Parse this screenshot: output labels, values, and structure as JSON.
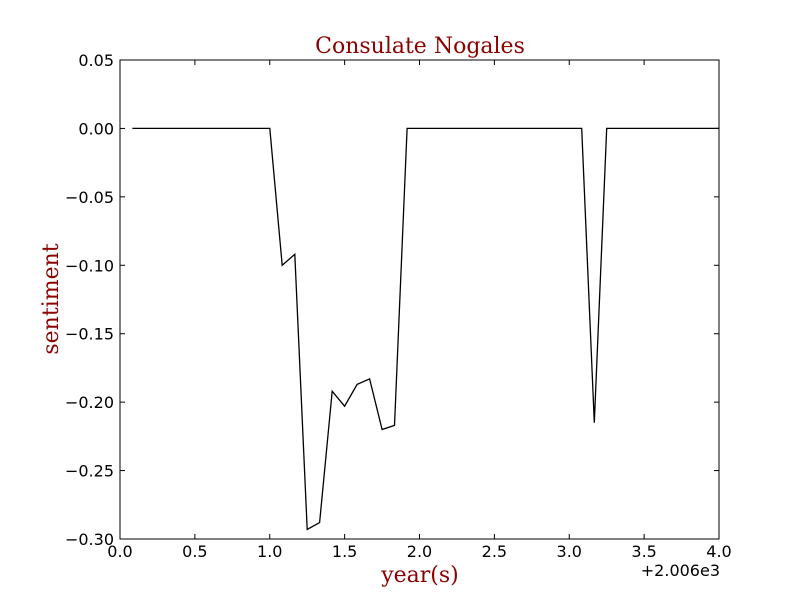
{
  "chart_data": {
    "type": "line",
    "title": "Consulate Nogales",
    "xlabel": "year(s)",
    "ylabel": "sentiment",
    "x_offset_label": "+2.006e3",
    "xlim": [
      0.0,
      4.0
    ],
    "ylim": [
      -0.3,
      0.05
    ],
    "xticks": [
      0.0,
      0.5,
      1.0,
      1.5,
      2.0,
      2.5,
      3.0,
      3.5,
      4.0
    ],
    "xtick_labels": [
      "0.0",
      "0.5",
      "1.0",
      "1.5",
      "2.0",
      "2.5",
      "3.0",
      "3.5",
      "4.0"
    ],
    "yticks": [
      0.05,
      0.0,
      -0.05,
      -0.1,
      -0.15,
      -0.2,
      -0.25,
      -0.3
    ],
    "ytick_labels": [
      "0.05",
      "0.00",
      "−0.05",
      "−0.10",
      "−0.15",
      "−0.20",
      "−0.25",
      "−0.30"
    ],
    "grid": false,
    "line_color": "#000000",
    "series": [
      {
        "x": [
          0.083,
          0.167,
          0.25,
          0.333,
          0.417,
          0.5,
          0.583,
          0.667,
          0.75,
          0.833,
          0.917,
          1.0,
          1.083,
          1.167,
          1.25,
          1.333,
          1.417,
          1.5,
          1.583,
          1.667,
          1.75,
          1.833,
          1.917,
          2.0,
          2.5,
          3.0,
          3.083,
          3.167,
          3.25,
          3.333,
          4.0
        ],
        "values": [
          0.0,
          0.0,
          0.0,
          0.0,
          0.0,
          0.0,
          0.0,
          0.0,
          0.0,
          0.0,
          0.0,
          0.0,
          -0.1,
          -0.092,
          -0.293,
          -0.288,
          -0.192,
          -0.203,
          -0.187,
          -0.183,
          -0.22,
          -0.217,
          0.0,
          0.0,
          0.0,
          0.0,
          0.0,
          -0.215,
          0.0,
          0.0,
          0.0
        ]
      }
    ]
  }
}
